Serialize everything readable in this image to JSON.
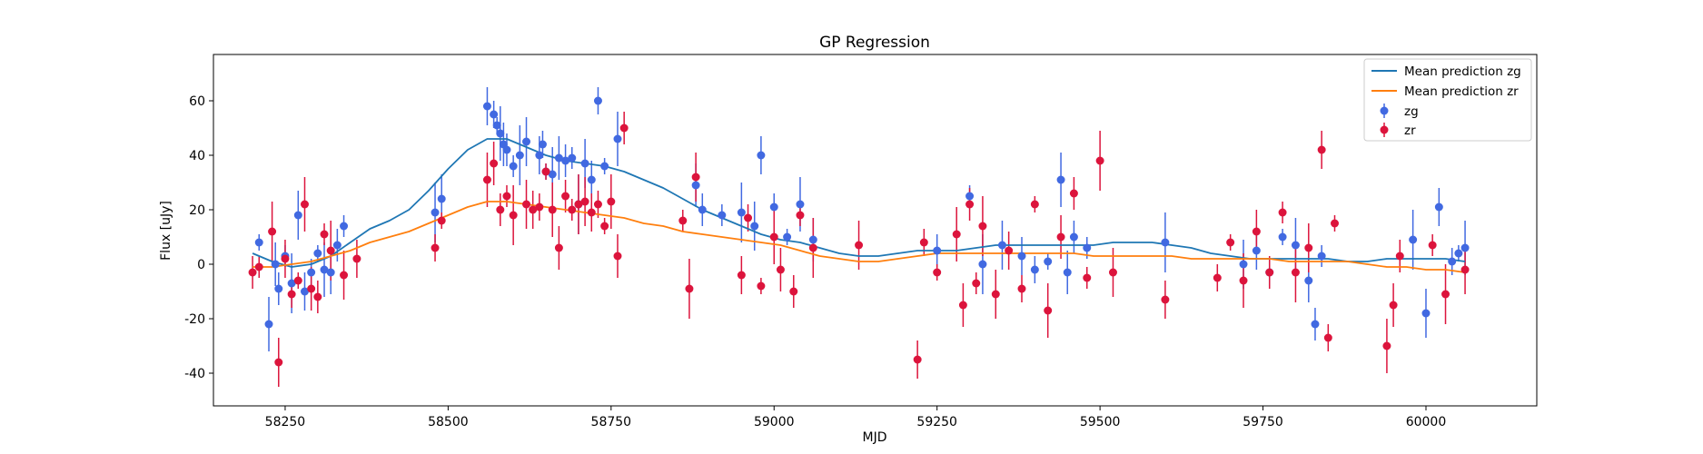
{
  "chart_data": {
    "type": "scatter",
    "title": "GP Regression",
    "xlabel": "MJD",
    "ylabel": "Flux [uJy]",
    "xlim": [
      58140,
      60170
    ],
    "ylim": [
      -52,
      77
    ],
    "xticks": [
      58250,
      58500,
      58750,
      59000,
      59250,
      59500,
      59750,
      60000
    ],
    "yticks": [
      -40,
      -20,
      0,
      20,
      40,
      60
    ],
    "legend_position": "top-right",
    "mean_predictions": [
      {
        "name": "Mean prediction zg",
        "color": "#1f77b4",
        "x": [
          58200,
          58230,
          58260,
          58290,
          58320,
          58350,
          58380,
          58410,
          58440,
          58470,
          58500,
          58530,
          58560,
          58590,
          58620,
          58650,
          58680,
          58710,
          58740,
          58770,
          58800,
          58830,
          58860,
          58890,
          58920,
          58950,
          58980,
          59010,
          59040,
          59070,
          59100,
          59130,
          59160,
          59190,
          59220,
          59250,
          59280,
          59310,
          59340,
          59370,
          59400,
          59430,
          59460,
          59490,
          59520,
          59550,
          59580,
          59610,
          59640,
          59670,
          59700,
          59730,
          59760,
          59790,
          59820,
          59850,
          59880,
          59910,
          59940,
          59970,
          60000,
          60030,
          60060
        ],
        "y": [
          4,
          1,
          -1,
          0,
          3,
          8,
          13,
          16,
          20,
          27,
          35,
          42,
          46,
          46,
          43,
          40,
          38,
          37,
          36,
          34,
          31,
          28,
          24,
          20,
          17,
          14,
          11,
          9,
          8,
          6,
          4,
          3,
          3,
          4,
          5,
          5,
          5,
          6,
          7,
          7,
          7,
          7,
          7,
          7,
          8,
          8,
          8,
          7,
          6,
          4,
          3,
          2,
          2,
          2,
          2,
          2,
          1,
          1,
          2,
          2,
          2,
          2,
          1
        ]
      },
      {
        "name": "Mean prediction zr",
        "color": "#ff7f0e",
        "x": [
          58200,
          58230,
          58260,
          58290,
          58320,
          58350,
          58380,
          58410,
          58440,
          58470,
          58500,
          58530,
          58560,
          58590,
          58620,
          58650,
          58680,
          58710,
          58740,
          58770,
          58800,
          58830,
          58860,
          58890,
          58920,
          58950,
          58980,
          59010,
          59040,
          59070,
          59100,
          59130,
          59160,
          59190,
          59220,
          59250,
          59280,
          59310,
          59340,
          59370,
          59400,
          59430,
          59460,
          59490,
          59520,
          59550,
          59580,
          59610,
          59640,
          59670,
          59700,
          59730,
          59760,
          59790,
          59820,
          59850,
          59880,
          59910,
          59940,
          59970,
          60000,
          60030,
          60060
        ],
        "y": [
          -1,
          -1,
          0,
          1,
          3,
          5,
          8,
          10,
          12,
          15,
          18,
          21,
          23,
          23,
          22,
          21,
          20,
          19,
          18,
          17,
          15,
          14,
          12,
          11,
          10,
          9,
          8,
          7,
          5,
          3,
          2,
          1,
          1,
          2,
          3,
          4,
          4,
          4,
          4,
          4,
          4,
          4,
          4,
          3,
          3,
          3,
          3,
          3,
          2,
          2,
          2,
          2,
          2,
          1,
          1,
          1,
          1,
          0,
          -1,
          -1,
          -2,
          -2,
          -3
        ]
      }
    ],
    "series": [
      {
        "name": "zg",
        "color": "#4169e1",
        "x": [
          58210,
          58225,
          58235,
          58240,
          58250,
          58260,
          58270,
          58280,
          58290,
          58300,
          58310,
          58320,
          58330,
          58340,
          58480,
          58490,
          58560,
          58570,
          58575,
          58580,
          58585,
          58590,
          58600,
          58610,
          58620,
          58640,
          58645,
          58650,
          58660,
          58670,
          58680,
          58690,
          58700,
          58710,
          58720,
          58730,
          58740,
          58760,
          58880,
          58890,
          58920,
          58950,
          58970,
          58980,
          59000,
          59020,
          59040,
          59060,
          59250,
          59300,
          59320,
          59350,
          59380,
          59400,
          59420,
          59440,
          59450,
          59460,
          59480,
          59600,
          59720,
          59740,
          59760,
          59780,
          59800,
          59820,
          59830,
          59840,
          59980,
          60000,
          60020,
          60040,
          60050,
          60060
        ],
        "y": [
          8,
          -22,
          0,
          -9,
          3,
          -7,
          18,
          -10,
          -3,
          4,
          -2,
          -3,
          7,
          14,
          19,
          24,
          58,
          55,
          51,
          48,
          44,
          42,
          36,
          40,
          45,
          40,
          44,
          34,
          33,
          39,
          38,
          39,
          22,
          37,
          31,
          60,
          36,
          46,
          29,
          20,
          18,
          19,
          14,
          40,
          21,
          10,
          22,
          9,
          5,
          25,
          0,
          7,
          3,
          -2,
          1,
          31,
          -3,
          10,
          6,
          8,
          0,
          5,
          -3,
          10,
          7,
          -6,
          -22,
          3,
          9,
          -18,
          21,
          1,
          4,
          6
        ]
      },
      {
        "name": "zr",
        "color": "#dc143c",
        "x": [
          58200,
          58210,
          58230,
          58240,
          58250,
          58260,
          58270,
          58280,
          58290,
          58300,
          58310,
          58320,
          58340,
          58360,
          58480,
          58490,
          58560,
          58570,
          58580,
          58590,
          58600,
          58620,
          58630,
          58640,
          58650,
          58660,
          58670,
          58680,
          58690,
          58700,
          58710,
          58720,
          58730,
          58740,
          58750,
          58760,
          58770,
          58860,
          58870,
          58880,
          58950,
          58960,
          58980,
          59000,
          59010,
          59030,
          59040,
          59060,
          59130,
          59220,
          59230,
          59250,
          59280,
          59290,
          59300,
          59310,
          59320,
          59340,
          59360,
          59380,
          59400,
          59420,
          59440,
          59460,
          59480,
          59500,
          59520,
          59600,
          59680,
          59700,
          59720,
          59740,
          59760,
          59780,
          59800,
          59820,
          59840,
          59850,
          59860,
          59940,
          59950,
          59960,
          60010,
          60030,
          60060
        ],
        "y": [
          -3,
          -1,
          12,
          -36,
          2,
          -11,
          -6,
          22,
          -9,
          -12,
          11,
          5,
          -4,
          2,
          6,
          16,
          31,
          37,
          20,
          25,
          18,
          22,
          20,
          21,
          34,
          20,
          6,
          25,
          20,
          22,
          23,
          19,
          22,
          14,
          23,
          3,
          50,
          16,
          -9,
          32,
          -4,
          17,
          -8,
          10,
          -2,
          -10,
          18,
          6,
          7,
          -35,
          8,
          -3,
          11,
          -15,
          22,
          -7,
          14,
          -11,
          5,
          -9,
          22,
          -17,
          10,
          26,
          -5,
          38,
          -3,
          -13,
          -5,
          8,
          -6,
          12,
          -3,
          19,
          -3,
          6,
          42,
          -27,
          15,
          -30,
          -15,
          3,
          7,
          -11,
          -2
        ]
      }
    ]
  }
}
